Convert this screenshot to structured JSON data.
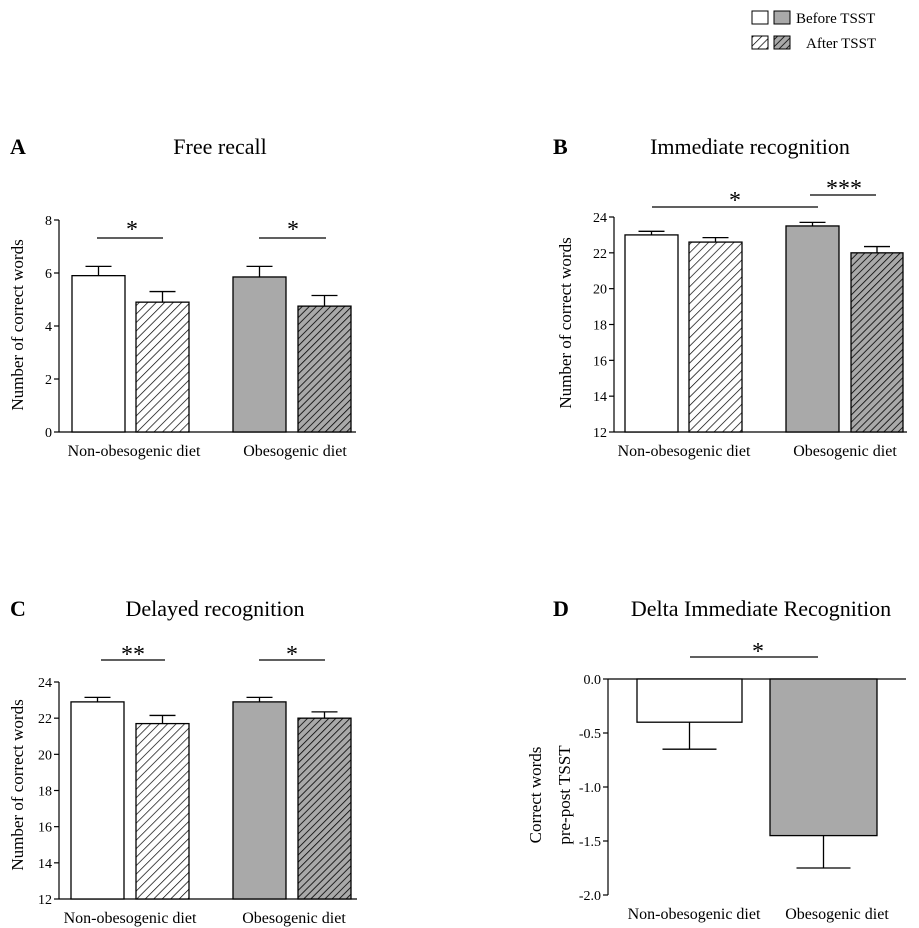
{
  "legend": {
    "items": [
      {
        "label": "Before TSST"
      },
      {
        "label": "After TSST"
      }
    ]
  },
  "colors": {
    "non_obesogenic": "#ffffff",
    "obesogenic": "#a9a9a9",
    "stroke": "#000000"
  },
  "chart_data": [
    {
      "panel": "A",
      "type": "bar",
      "title": "Free recall",
      "ylabel": "Number of correct words",
      "ylim": [
        0,
        8
      ],
      "yticks": [
        0,
        2,
        4,
        6,
        8
      ],
      "categories": [
        "Non-obesogenic diet",
        "Obesogenic diet"
      ],
      "series": [
        {
          "name": "Before TSST",
          "values": [
            5.9,
            5.85
          ],
          "errors": [
            0.35,
            0.4
          ]
        },
        {
          "name": "After TSST",
          "values": [
            4.9,
            4.75
          ],
          "errors": [
            0.4,
            0.4
          ]
        }
      ],
      "annotations": [
        {
          "text": "*",
          "category": 0
        },
        {
          "text": "*",
          "category": 1
        }
      ]
    },
    {
      "panel": "B",
      "type": "bar",
      "title": "Immediate recognition",
      "ylabel": "Number of correct words",
      "ylim": [
        12,
        24
      ],
      "yticks": [
        12,
        14,
        16,
        18,
        20,
        22,
        24
      ],
      "categories": [
        "Non-obesogenic diet",
        "Obesogenic diet"
      ],
      "series": [
        {
          "name": "Before TSST",
          "values": [
            23.0,
            23.5
          ],
          "errors": [
            0.2,
            0.2
          ]
        },
        {
          "name": "After TSST",
          "values": [
            22.6,
            22.0
          ],
          "errors": [
            0.25,
            0.35
          ]
        }
      ],
      "annotations": [
        {
          "text": "*",
          "between": "non-obesogenic before vs obesogenic before"
        },
        {
          "text": "***",
          "category": 1
        }
      ]
    },
    {
      "panel": "C",
      "type": "bar",
      "title": "Delayed recognition",
      "ylabel": "Number of correct words",
      "ylim": [
        12,
        24
      ],
      "yticks": [
        12,
        14,
        16,
        18,
        20,
        22,
        24
      ],
      "categories": [
        "Non-obesogenic diet",
        "Obesogenic diet"
      ],
      "series": [
        {
          "name": "Before TSST",
          "values": [
            22.9,
            22.9
          ],
          "errors": [
            0.25,
            0.25
          ]
        },
        {
          "name": "After TSST",
          "values": [
            21.7,
            22.0
          ],
          "errors": [
            0.45,
            0.35
          ]
        }
      ],
      "annotations": [
        {
          "text": "**",
          "category": 0
        },
        {
          "text": "*",
          "category": 1
        }
      ]
    },
    {
      "panel": "D",
      "type": "bar",
      "title": "Delta Immediate Recognition",
      "ylabel": [
        "Correct words",
        "pre-post TSST"
      ],
      "ylim": [
        -2.0,
        0.0
      ],
      "yticks": [
        0.0,
        -0.5,
        -1.0,
        -1.5,
        -2.0
      ],
      "ytick_labels": [
        "0.0",
        "-0.5",
        "-1.0",
        "-1.5",
        "-2.0"
      ],
      "categories": [
        "Non-obesogenic diet",
        "Obesogenic diet"
      ],
      "values": [
        -0.4,
        -1.45
      ],
      "errors": [
        0.25,
        0.3
      ],
      "annotations": [
        {
          "text": "*",
          "between": "Non-obesogenic diet vs Obesogenic diet"
        }
      ]
    }
  ]
}
